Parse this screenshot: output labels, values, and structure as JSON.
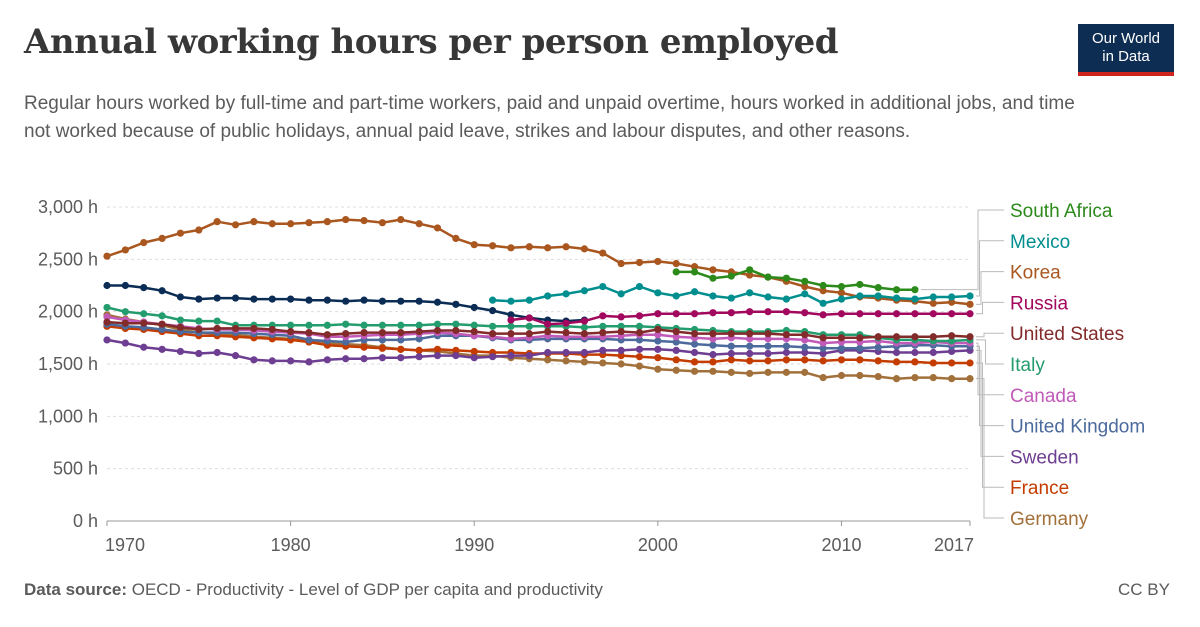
{
  "header": {
    "title": "Annual working hours per person employed",
    "subtitle": "Regular hours worked by full-time and part-time workers, paid and unpaid overtime, hours worked in additional jobs, and time not worked because of public holidays, annual paid leave, strikes and labour disputes, and other reasons.",
    "logo_line1": "Our World",
    "logo_line2": "in Data"
  },
  "footer": {
    "source_label": "Data source:",
    "source_text": "OECD - Productivity - Level of GDP per capita and productivity",
    "license": "CC BY"
  },
  "chart_data": {
    "type": "line",
    "xlim": [
      1970,
      2017
    ],
    "ylim": [
      0,
      3000
    ],
    "y_ticks": [
      0,
      500,
      1000,
      1500,
      2000,
      2500,
      3000
    ],
    "y_tick_labels": [
      "0 h",
      "500 h",
      "1,000 h",
      "1,500 h",
      "2,000 h",
      "2,500 h",
      "3,000 h"
    ],
    "x_ticks": [
      1970,
      1980,
      1990,
      2000,
      2010,
      2017
    ],
    "x_tick_labels": [
      "1970",
      "1980",
      "1990",
      "2000",
      "2010",
      "2017"
    ],
    "grid": "horizontal-dashed",
    "legend": "right",
    "series": [
      {
        "name": "South Africa",
        "color": "#2c8a1b",
        "x": [
          2001,
          2002,
          2003,
          2004,
          2005,
          2006,
          2007,
          2008,
          2009,
          2010,
          2011,
          2012,
          2013,
          2014
        ],
        "y": [
          2380,
          2380,
          2320,
          2340,
          2400,
          2330,
          2320,
          2290,
          2250,
          2240,
          2260,
          2230,
          2210,
          2210
        ]
      },
      {
        "name": "Mexico",
        "color": "#008e8e",
        "x": [
          1991,
          1992,
          1993,
          1994,
          1995,
          1996,
          1997,
          1998,
          1999,
          2000,
          2001,
          2002,
          2003,
          2004,
          2005,
          2006,
          2007,
          2008,
          2009,
          2010,
          2011,
          2012,
          2013,
          2014,
          2015,
          2016,
          2017
        ],
        "y": [
          2110,
          2100,
          2110,
          2150,
          2170,
          2200,
          2240,
          2170,
          2240,
          2180,
          2150,
          2190,
          2150,
          2130,
          2180,
          2140,
          2120,
          2170,
          2080,
          2120,
          2150,
          2150,
          2130,
          2120,
          2140,
          2140,
          2150
        ]
      },
      {
        "name": "Korea",
        "color": "#a9561f",
        "x": [
          1970,
          1971,
          1972,
          1973,
          1974,
          1975,
          1976,
          1977,
          1978,
          1979,
          1980,
          1981,
          1982,
          1983,
          1984,
          1985,
          1986,
          1987,
          1988,
          1989,
          1990,
          1991,
          1992,
          1993,
          1994,
          1995,
          1996,
          1997,
          1998,
          1999,
          2000,
          2001,
          2002,
          2003,
          2004,
          2005,
          2006,
          2007,
          2008,
          2009,
          2010,
          2011,
          2012,
          2013,
          2014,
          2015,
          2016,
          2017
        ],
        "y": [
          2530,
          2590,
          2660,
          2700,
          2750,
          2780,
          2860,
          2830,
          2860,
          2840,
          2840,
          2850,
          2860,
          2880,
          2870,
          2850,
          2880,
          2840,
          2800,
          2700,
          2640,
          2630,
          2610,
          2620,
          2610,
          2620,
          2600,
          2560,
          2460,
          2470,
          2480,
          2460,
          2430,
          2400,
          2380,
          2350,
          2330,
          2290,
          2240,
          2200,
          2180,
          2140,
          2130,
          2110,
          2100,
          2080,
          2090,
          2070
        ]
      },
      {
        "name": "Russia",
        "color": "#a2085e",
        "x": [
          1992,
          1993,
          1994,
          1995,
          1996,
          1997,
          1998,
          1999,
          2000,
          2001,
          2002,
          2003,
          2004,
          2005,
          2006,
          2007,
          2008,
          2009,
          2010,
          2011,
          2012,
          2013,
          2014,
          2015,
          2016,
          2017
        ],
        "y": [
          1920,
          1940,
          1880,
          1890,
          1910,
          1960,
          1950,
          1960,
          1980,
          1980,
          1980,
          1990,
          1990,
          2000,
          2000,
          2000,
          1990,
          1970,
          1980,
          1980,
          1980,
          1980,
          1980,
          1980,
          1980,
          1980
        ]
      },
      {
        "name": "United States",
        "color": "#832a2a",
        "x": [
          1970,
          1971,
          1972,
          1973,
          1974,
          1975,
          1976,
          1977,
          1978,
          1979,
          1980,
          1981,
          1982,
          1983,
          1984,
          1985,
          1986,
          1987,
          1988,
          1989,
          1990,
          1991,
          1992,
          1993,
          1994,
          1995,
          1996,
          1997,
          1998,
          1999,
          2000,
          2001,
          2002,
          2003,
          2004,
          2005,
          2006,
          2007,
          2008,
          2009,
          2010,
          2011,
          2012,
          2013,
          2014,
          2015,
          2016,
          2017
        ],
        "y": [
          1900,
          1890,
          1890,
          1880,
          1850,
          1830,
          1840,
          1840,
          1840,
          1830,
          1810,
          1800,
          1780,
          1790,
          1800,
          1800,
          1800,
          1810,
          1820,
          1820,
          1810,
          1790,
          1790,
          1790,
          1810,
          1800,
          1790,
          1800,
          1810,
          1800,
          1830,
          1810,
          1790,
          1790,
          1790,
          1790,
          1790,
          1780,
          1780,
          1750,
          1750,
          1750,
          1760,
          1760,
          1760,
          1760,
          1770,
          1760
        ]
      },
      {
        "name": "Italy",
        "color": "#249d6e",
        "x": [
          1970,
          1971,
          1972,
          1973,
          1974,
          1975,
          1976,
          1977,
          1978,
          1979,
          1980,
          1981,
          1982,
          1983,
          1984,
          1985,
          1986,
          1987,
          1988,
          1989,
          1990,
          1991,
          1992,
          1993,
          1994,
          1995,
          1996,
          1997,
          1998,
          1999,
          2000,
          2001,
          2002,
          2003,
          2004,
          2005,
          2006,
          2007,
          2008,
          2009,
          2010,
          2011,
          2012,
          2013,
          2014,
          2015,
          2016,
          2017
        ],
        "y": [
          2040,
          2000,
          1980,
          1960,
          1920,
          1910,
          1910,
          1870,
          1870,
          1870,
          1870,
          1870,
          1870,
          1880,
          1870,
          1870,
          1870,
          1870,
          1880,
          1880,
          1870,
          1860,
          1860,
          1860,
          1860,
          1860,
          1850,
          1860,
          1860,
          1860,
          1850,
          1840,
          1830,
          1820,
          1810,
          1810,
          1810,
          1820,
          1810,
          1780,
          1780,
          1780,
          1750,
          1730,
          1730,
          1720,
          1720,
          1730
        ]
      },
      {
        "name": "Canada",
        "color": "#c15ab8",
        "x": [
          1970,
          1971,
          1972,
          1973,
          1974,
          1975,
          1976,
          1977,
          1978,
          1979,
          1980,
          1981,
          1982,
          1983,
          1984,
          1985,
          1986,
          1987,
          1988,
          1989,
          1990,
          1991,
          1992,
          1993,
          1994,
          1995,
          1996,
          1997,
          1998,
          1999,
          2000,
          2001,
          2002,
          2003,
          2004,
          2005,
          2006,
          2007,
          2008,
          2009,
          2010,
          2011,
          2012,
          2013,
          2014,
          2015,
          2016,
          2017
        ],
        "y": [
          1950,
          1920,
          1900,
          1880,
          1860,
          1840,
          1830,
          1830,
          1820,
          1810,
          1800,
          1790,
          1760,
          1760,
          1770,
          1780,
          1780,
          1790,
          1800,
          1790,
          1770,
          1760,
          1740,
          1750,
          1770,
          1760,
          1760,
          1760,
          1770,
          1780,
          1780,
          1760,
          1750,
          1740,
          1750,
          1740,
          1740,
          1740,
          1730,
          1700,
          1710,
          1710,
          1720,
          1700,
          1700,
          1710,
          1700,
          1700
        ]
      },
      {
        "name": "United Kingdom",
        "color": "#4c6a9c",
        "x": [
          1970,
          1971,
          1972,
          1973,
          1974,
          1975,
          1976,
          1977,
          1978,
          1979,
          1980,
          1981,
          1982,
          1983,
          1984,
          1985,
          1986,
          1987,
          1988,
          1989,
          1990,
          1991,
          1992,
          1993,
          1994,
          1995,
          1996,
          1997,
          1998,
          1999,
          2000,
          2001,
          2002,
          2003,
          2004,
          2005,
          2006,
          2007,
          2008,
          2009,
          2010,
          2011,
          2012,
          2013,
          2014,
          2015,
          2016,
          2017
        ],
        "y": [
          1880,
          1860,
          1850,
          1830,
          1810,
          1800,
          1800,
          1800,
          1790,
          1780,
          1770,
          1730,
          1720,
          1710,
          1730,
          1730,
          1730,
          1740,
          1770,
          1770,
          1770,
          1750,
          1730,
          1730,
          1740,
          1740,
          1740,
          1740,
          1730,
          1730,
          1720,
          1710,
          1690,
          1680,
          1670,
          1670,
          1670,
          1670,
          1660,
          1650,
          1650,
          1650,
          1660,
          1670,
          1680,
          1680,
          1670,
          1670
        ]
      },
      {
        "name": "Sweden",
        "color": "#6d3e91",
        "x": [
          1970,
          1971,
          1972,
          1973,
          1974,
          1975,
          1976,
          1977,
          1978,
          1979,
          1980,
          1981,
          1982,
          1983,
          1984,
          1985,
          1986,
          1987,
          1988,
          1989,
          1990,
          1991,
          1992,
          1993,
          1994,
          1995,
          1996,
          1997,
          1998,
          1999,
          2000,
          2001,
          2002,
          2003,
          2004,
          2005,
          2006,
          2007,
          2008,
          2009,
          2010,
          2011,
          2012,
          2013,
          2014,
          2015,
          2016,
          2017
        ],
        "y": [
          1730,
          1700,
          1660,
          1640,
          1620,
          1600,
          1610,
          1580,
          1540,
          1530,
          1530,
          1520,
          1540,
          1550,
          1550,
          1560,
          1560,
          1570,
          1580,
          1580,
          1560,
          1570,
          1580,
          1580,
          1610,
          1610,
          1610,
          1630,
          1630,
          1640,
          1640,
          1630,
          1610,
          1590,
          1600,
          1600,
          1600,
          1610,
          1610,
          1600,
          1630,
          1630,
          1620,
          1610,
          1610,
          1610,
          1620,
          1630
        ]
      },
      {
        "name": "France",
        "color": "#c43c00",
        "x": [
          1970,
          1971,
          1972,
          1973,
          1974,
          1975,
          1976,
          1977,
          1978,
          1979,
          1980,
          1981,
          1982,
          1983,
          1984,
          1985,
          1986,
          1987,
          1988,
          1989,
          1990,
          1991,
          1992,
          1993,
          1994,
          1995,
          1996,
          1997,
          1998,
          1999,
          2000,
          2001,
          2002,
          2003,
          2004,
          2005,
          2006,
          2007,
          2008,
          2009,
          2010,
          2011,
          2012,
          2013,
          2014,
          2015,
          2016,
          2017
        ],
        "y": [
          1860,
          1840,
          1830,
          1810,
          1790,
          1770,
          1770,
          1760,
          1750,
          1740,
          1730,
          1710,
          1680,
          1670,
          1660,
          1650,
          1640,
          1630,
          1640,
          1630,
          1620,
          1610,
          1610,
          1600,
          1600,
          1600,
          1590,
          1590,
          1580,
          1570,
          1560,
          1540,
          1520,
          1520,
          1540,
          1530,
          1530,
          1540,
          1540,
          1530,
          1540,
          1540,
          1530,
          1520,
          1520,
          1510,
          1510,
          1510
        ]
      },
      {
        "name": "Germany",
        "color": "#a2713b",
        "x": [
          1970,
          1971,
          1972,
          1973,
          1974,
          1975,
          1976,
          1977,
          1978,
          1979,
          1980,
          1981,
          1982,
          1983,
          1984,
          1985,
          1986,
          1987,
          1988,
          1989,
          1990,
          1991,
          1992,
          1993,
          1994,
          1995,
          1996,
          1997,
          1998,
          1999,
          2000,
          2001,
          2002,
          2003,
          2004,
          2005,
          2006,
          2007,
          2008,
          2009,
          2010,
          2011,
          2012,
          2013,
          2014,
          2015,
          2016,
          2017
        ],
        "y": [
          1970,
          1930,
          1900,
          1870,
          1830,
          1800,
          1790,
          1780,
          1760,
          1750,
          1740,
          1720,
          1700,
          1690,
          1680,
          1660,
          1640,
          1630,
          1620,
          1600,
          1580,
          1580,
          1560,
          1550,
          1540,
          1530,
          1520,
          1510,
          1500,
          1480,
          1450,
          1440,
          1430,
          1430,
          1420,
          1410,
          1420,
          1420,
          1420,
          1370,
          1390,
          1390,
          1380,
          1360,
          1370,
          1370,
          1360,
          1360
        ]
      },
      {
        "name": "",
        "color": "#0b2c54",
        "x": [
          1970,
          1971,
          1972,
          1973,
          1974,
          1975,
          1976,
          1977,
          1978,
          1979,
          1980,
          1981,
          1982,
          1983,
          1984,
          1985,
          1986,
          1987,
          1988,
          1989,
          1990,
          1991,
          1992,
          1993,
          1994,
          1995,
          1996
        ],
        "y": [
          2250,
          2250,
          2230,
          2200,
          2140,
          2120,
          2130,
          2130,
          2120,
          2120,
          2120,
          2110,
          2110,
          2100,
          2110,
          2100,
          2100,
          2100,
          2090,
          2070,
          2040,
          2010,
          1970,
          1940,
          1920,
          1910,
          1920
        ]
      }
    ]
  }
}
